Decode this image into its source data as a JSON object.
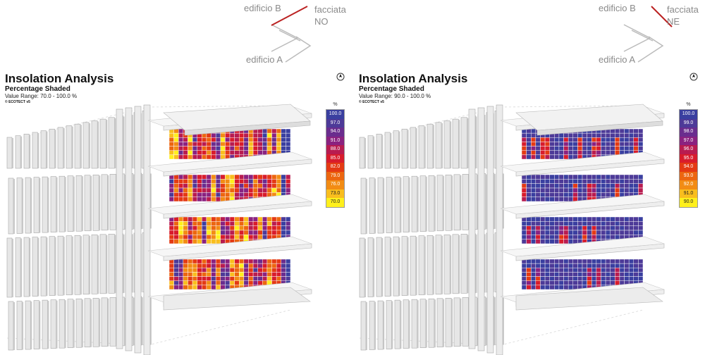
{
  "panels": [
    {
      "id": "left",
      "orientation": {
        "label_b": "edificio B",
        "label_facade": "facciata",
        "label_dir": "NO",
        "label_a": "edificio A"
      },
      "title": "Insolation Analysis",
      "subtitle": "Percentage Shaded",
      "value_range": "Value Range: 70.0 - 100.0 %",
      "ecotect": "© ECOTECT v5",
      "legend": {
        "unit": "%",
        "items": [
          {
            "value": "100.0",
            "color": "#3a3fa0"
          },
          {
            "value": "97.0",
            "color": "#4d3a98"
          },
          {
            "value": "94.0",
            "color": "#6a2d8e"
          },
          {
            "value": "91.0",
            "color": "#8a2280"
          },
          {
            "value": "88.0",
            "color": "#b81c50"
          },
          {
            "value": "85.0",
            "color": "#d81c2c"
          },
          {
            "value": "82.0",
            "color": "#e43a14"
          },
          {
            "value": "79.0",
            "color": "#ec6610"
          },
          {
            "value": "76.0",
            "color": "#f28c14"
          },
          {
            "value": "73.0",
            "color": "#f9be1e"
          },
          {
            "value": "70.0",
            "color": "#fff01c"
          }
        ]
      },
      "heat": "warm"
    },
    {
      "id": "right",
      "orientation": {
        "label_b": "edificio B",
        "label_facade": "facciata",
        "label_dir": "NE",
        "label_a": "edificio A"
      },
      "title": "Insolation Analysis",
      "subtitle": "Percentage Shaded",
      "value_range": "Value Range: 90.0 - 100.0 %",
      "ecotect": "© ECOTECT v5",
      "legend": {
        "unit": "%",
        "items": [
          {
            "value": "100.0",
            "color": "#3a3fa0"
          },
          {
            "value": "99.0",
            "color": "#4d3a98"
          },
          {
            "value": "98.0",
            "color": "#6a2d8e"
          },
          {
            "value": "97.0",
            "color": "#8a2280"
          },
          {
            "value": "96.0",
            "color": "#b81c50"
          },
          {
            "value": "95.0",
            "color": "#d81c2c"
          },
          {
            "value": "94.0",
            "color": "#e43a14"
          },
          {
            "value": "93.0",
            "color": "#ec6610"
          },
          {
            "value": "92.0",
            "color": "#f28c14"
          },
          {
            "value": "91.0",
            "color": "#f9be1e"
          },
          {
            "value": "90.0",
            "color": "#fff01c"
          }
        ]
      },
      "heat": "cool"
    }
  ]
}
